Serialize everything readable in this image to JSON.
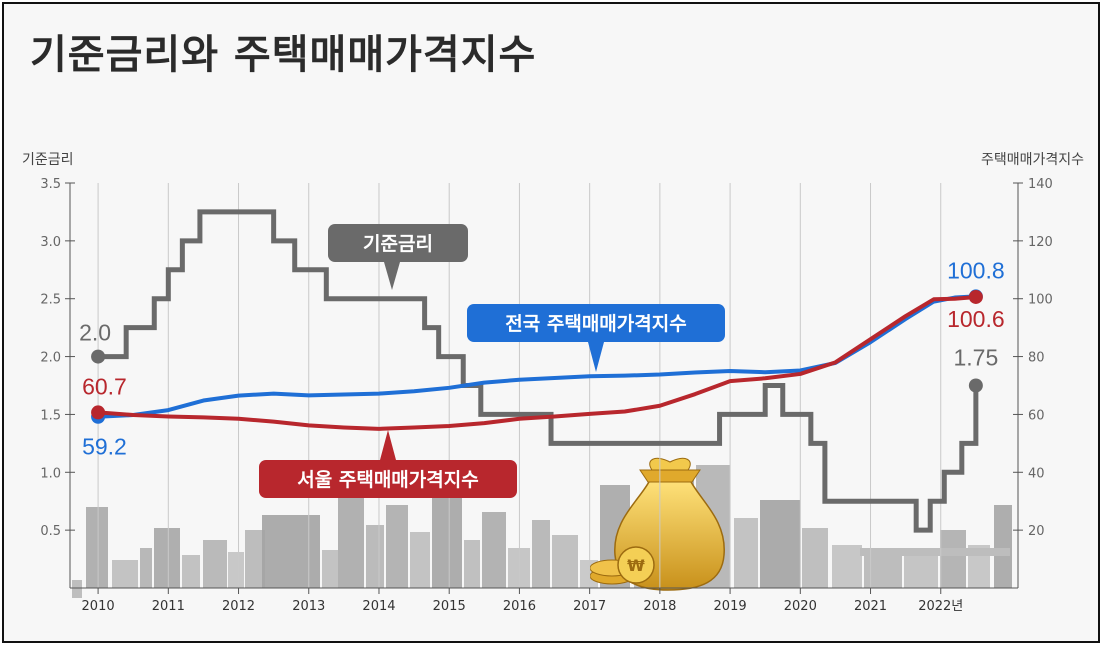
{
  "chart_data": {
    "type": "line",
    "title": "기준금리와 주택매매가격지수",
    "ylabel": "기준금리",
    "y2label": "주택매매가격지수",
    "ylim": [
      0,
      3.5
    ],
    "y2lim": [
      0,
      140
    ],
    "yticks": [
      "0.5",
      "1.0",
      "1.5",
      "2.0",
      "2.5",
      "3.0",
      "3.5"
    ],
    "y2ticks": [
      "20",
      "40",
      "60",
      "80",
      "100",
      "120",
      "140"
    ],
    "xticks": [
      "2010",
      "2011",
      "2012",
      "2013",
      "2014",
      "2015",
      "2016",
      "2017",
      "2018",
      "2019",
      "2020",
      "2021",
      "2022년"
    ],
    "xlim": [
      2009.6,
      2023.1
    ],
    "series": [
      {
        "name": "기준금리",
        "axis": "left",
        "step": true,
        "color": "#6a6a6a",
        "callout": "기준금리",
        "start_label": "2.0",
        "end_label": "1.75",
        "x": [
          2010.0,
          2010.4,
          2010.8,
          2011.0,
          2011.2,
          2011.45,
          2012.5,
          2012.8,
          2013.25,
          2013.8,
          2014.65,
          2014.85,
          2015.2,
          2015.45,
          2016.45,
          2018.85,
          2019.5,
          2019.75,
          2020.15,
          2020.35,
          2021.65,
          2021.85,
          2022.05,
          2022.3,
          2022.5
        ],
        "values": [
          2.0,
          2.25,
          2.5,
          2.75,
          3.0,
          3.25,
          3.0,
          2.75,
          2.5,
          2.5,
          2.25,
          2.0,
          1.75,
          1.5,
          1.25,
          1.5,
          1.75,
          1.5,
          1.25,
          0.75,
          0.5,
          0.75,
          1.0,
          1.25,
          1.75
        ]
      },
      {
        "name": "전국 주택매매가격지수",
        "axis": "right",
        "color": "#1f6fd6",
        "callout": "전국 주택매매가격지수",
        "start_label": "59.2",
        "end_label": "100.8",
        "x": [
          2010.0,
          2010.5,
          2011.0,
          2011.5,
          2012.0,
          2012.5,
          2013.0,
          2013.5,
          2014.0,
          2014.5,
          2015.0,
          2015.5,
          2016.0,
          2016.5,
          2017.0,
          2017.5,
          2018.0,
          2018.5,
          2019.0,
          2019.5,
          2020.0,
          2020.5,
          2021.0,
          2021.5,
          2021.9,
          2022.2,
          2022.5
        ],
        "values": [
          59.2,
          59.8,
          61.5,
          64.8,
          66.5,
          67.2,
          66.6,
          66.9,
          67.2,
          68.0,
          69.2,
          71.0,
          72.0,
          72.6,
          73.2,
          73.4,
          73.8,
          74.5,
          75.0,
          74.6,
          75.2,
          77.8,
          85.0,
          93.0,
          99.0,
          100.4,
          100.8
        ]
      },
      {
        "name": "서울 주택매매가격지수",
        "axis": "right",
        "color": "#b8272d",
        "callout": "서울 주택매매가격지수",
        "start_label": "60.7",
        "end_label": "100.6",
        "x": [
          2010.0,
          2010.5,
          2011.0,
          2011.5,
          2012.0,
          2012.5,
          2013.0,
          2013.5,
          2014.0,
          2014.5,
          2015.0,
          2015.5,
          2016.0,
          2016.5,
          2017.0,
          2017.5,
          2018.0,
          2018.5,
          2019.0,
          2019.5,
          2020.0,
          2020.5,
          2021.0,
          2021.5,
          2021.9,
          2022.2,
          2022.5
        ],
        "values": [
          60.7,
          59.8,
          59.3,
          59.0,
          58.5,
          57.5,
          56.2,
          55.5,
          55.0,
          55.5,
          56.0,
          57.0,
          58.5,
          59.3,
          60.2,
          61.0,
          63.0,
          67.0,
          71.5,
          72.5,
          74.0,
          78.0,
          86.0,
          94.0,
          99.8,
          100.0,
          100.6
        ]
      }
    ],
    "grid": "vertical",
    "legend": "none"
  }
}
